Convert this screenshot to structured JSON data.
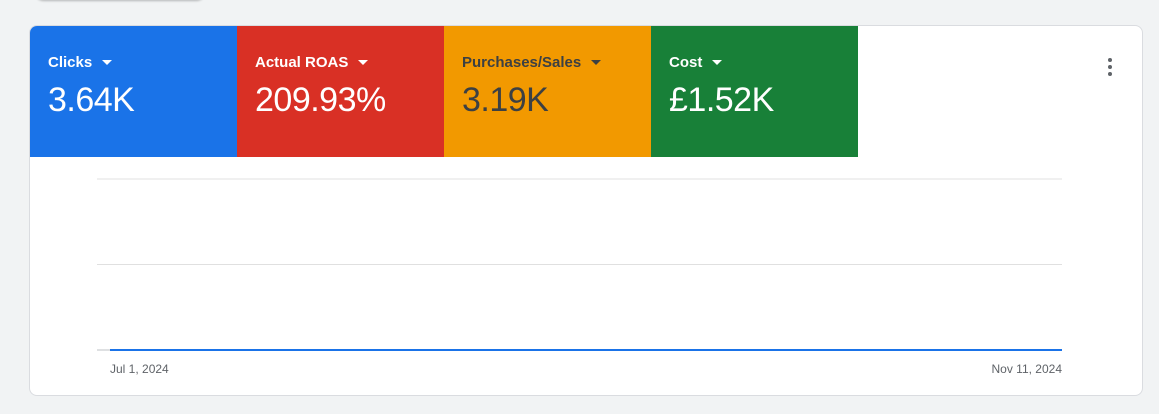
{
  "tiles": [
    {
      "label": "Clicks",
      "value": "3.64K",
      "bg": "#1a73e8",
      "fg": "#ffffff"
    },
    {
      "label": "Actual ROAS",
      "value": "209.93%",
      "bg": "#d93025",
      "fg": "#ffffff"
    },
    {
      "label": "Purchases/Sales",
      "value": "3.19K",
      "bg": "#f29900",
      "fg": "#3c4043"
    },
    {
      "label": "Cost",
      "value": "£1.52K",
      "bg": "#188038",
      "fg": "#ffffff"
    }
  ],
  "more_icon": "more-vert-icon",
  "chart_data": {
    "type": "line",
    "x_labels": [
      "Jul 1, 2024",
      "Nov 11, 2024"
    ],
    "grid": true,
    "series": [
      {
        "color": "#1a73e8",
        "values": [
          0,
          0,
          0,
          0,
          0,
          0,
          0,
          0,
          0,
          0,
          0,
          0,
          0,
          0,
          0,
          0,
          0,
          0,
          0,
          0,
          0,
          0,
          0,
          0,
          0,
          0,
          0,
          0,
          0,
          0,
          0,
          0,
          0,
          0,
          0,
          0,
          0,
          0,
          0,
          0,
          0,
          0,
          0,
          0,
          0,
          0,
          0,
          0,
          0,
          0,
          0,
          0,
          0,
          0,
          0,
          0,
          0,
          0,
          0,
          0,
          0,
          0,
          0,
          0,
          0,
          0,
          0,
          0,
          0,
          0,
          0,
          0,
          0,
          0,
          0,
          0,
          0,
          0,
          0,
          0,
          0,
          0,
          0,
          0,
          0,
          0,
          0,
          0,
          0,
          0,
          0,
          0,
          0,
          0,
          0,
          0,
          0,
          0,
          0,
          0
        ]
      }
    ]
  }
}
